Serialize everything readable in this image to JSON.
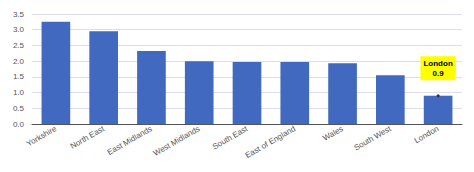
{
  "chart_data": {
    "type": "bar",
    "categories": [
      "Yorkshire",
      "North East",
      "East Midlands",
      "West Midlands",
      "South East",
      "East of England",
      "Wales",
      "South West",
      "London"
    ],
    "values": [
      3.25,
      2.95,
      2.32,
      2.0,
      1.97,
      1.97,
      1.93,
      1.55,
      0.9
    ],
    "color": "#4169bf",
    "ylim": [
      0,
      3.5
    ],
    "yticks": [
      {
        "value": 0,
        "label": "0.0"
      },
      0.5,
      {
        "value": 1,
        "label": "1.0"
      },
      1.5,
      {
        "value": 2,
        "label": "2.0"
      },
      2.5,
      {
        "value": 3,
        "label": "3.0"
      },
      3.5
    ],
    "grid": true,
    "annotations": [
      {
        "text": "London\n0.9",
        "x": "London",
        "y": 0.9,
        "color": "#ffff00"
      }
    ]
  }
}
